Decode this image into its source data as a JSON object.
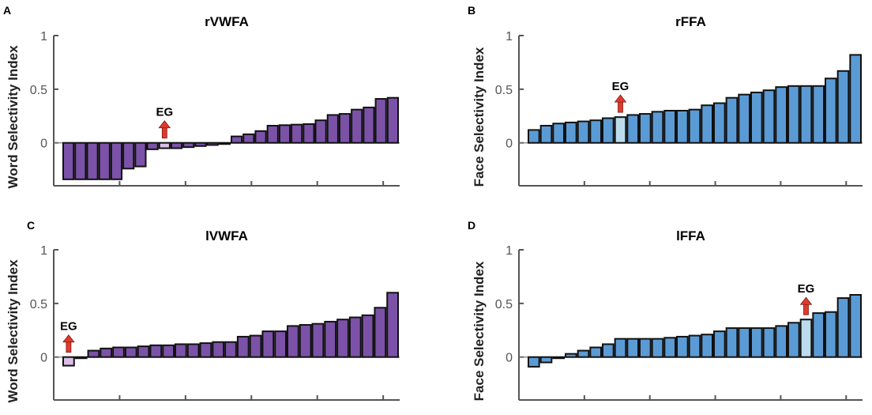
{
  "chart_data": [
    {
      "type": "bar",
      "panel_label": "A",
      "title": "rVWFA",
      "ylabel": "Word Selectivity Index",
      "ylim": [
        -0.4,
        1
      ],
      "yticks": [
        "1",
        "0.5",
        "0"
      ],
      "color": "#7b52a8",
      "highlight_color": "#d9bfe6",
      "annotation": "EG",
      "highlight_index": 8,
      "values": [
        -0.34,
        -0.34,
        -0.34,
        -0.34,
        -0.34,
        -0.24,
        -0.22,
        -0.06,
        -0.05,
        -0.05,
        -0.04,
        -0.03,
        -0.02,
        0.0,
        0.06,
        0.08,
        0.11,
        0.16,
        0.165,
        0.17,
        0.175,
        0.21,
        0.26,
        0.27,
        0.31,
        0.33,
        0.41,
        0.42
      ]
    },
    {
      "type": "bar",
      "panel_label": "B",
      "title": "rFFA",
      "ylabel": "Face Selectivity Index",
      "ylim": [
        -0.4,
        1
      ],
      "yticks": [
        "1",
        "0.5",
        "0"
      ],
      "color": "#5b9bd5",
      "highlight_color": "#bcdcee",
      "annotation": "EG",
      "highlight_index": 7,
      "values": [
        0.12,
        0.16,
        0.18,
        0.19,
        0.2,
        0.21,
        0.23,
        0.24,
        0.26,
        0.27,
        0.29,
        0.3,
        0.3,
        0.31,
        0.35,
        0.37,
        0.42,
        0.45,
        0.47,
        0.49,
        0.52,
        0.53,
        0.53,
        0.53,
        0.6,
        0.67,
        0.82
      ]
    },
    {
      "type": "bar",
      "panel_label": "C",
      "title": "lVWFA",
      "ylabel": "Word Selectivity Index",
      "ylim": [
        -0.4,
        1
      ],
      "yticks": [
        "1",
        "0.5",
        "0"
      ],
      "color": "#7b52a8",
      "highlight_color": "#d9bfe6",
      "annotation": "EG",
      "highlight_index": 0,
      "values": [
        -0.08,
        -0.01,
        0.06,
        0.08,
        0.09,
        0.09,
        0.1,
        0.11,
        0.11,
        0.12,
        0.12,
        0.13,
        0.14,
        0.14,
        0.19,
        0.2,
        0.24,
        0.24,
        0.29,
        0.3,
        0.31,
        0.33,
        0.35,
        0.37,
        0.39,
        0.46,
        0.6
      ]
    },
    {
      "type": "bar",
      "panel_label": "D",
      "title": "lFFA",
      "ylabel": "Face Selectivity Index",
      "ylim": [
        -0.4,
        1
      ],
      "yticks": [
        "1",
        "0.5",
        "0"
      ],
      "color": "#5b9bd5",
      "highlight_color": "#bcdcee",
      "annotation": "EG",
      "highlight_index": 22,
      "values": [
        -0.09,
        -0.05,
        -0.01,
        0.03,
        0.06,
        0.09,
        0.12,
        0.17,
        0.17,
        0.17,
        0.17,
        0.18,
        0.19,
        0.2,
        0.21,
        0.24,
        0.27,
        0.27,
        0.27,
        0.27,
        0.29,
        0.32,
        0.35,
        0.41,
        0.42,
        0.55,
        0.58
      ]
    }
  ]
}
